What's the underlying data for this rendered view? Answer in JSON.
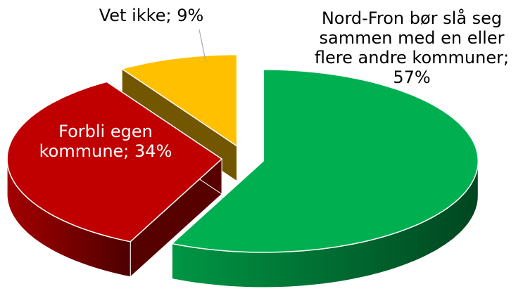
{
  "chart_data": {
    "type": "pie",
    "categories": [
      "Nord-Fron bør slå seg sammen med en eller flere andre kommuner",
      "Forbli egen kommune",
      "Vet ikke"
    ],
    "values": [
      57,
      34,
      9
    ],
    "value_labels": [
      "57%",
      "34%",
      "9%"
    ],
    "label_separator": ";",
    "colors": [
      "#00b050",
      "#c00000",
      "#ffc000"
    ],
    "exploded": true,
    "three_d": true
  }
}
